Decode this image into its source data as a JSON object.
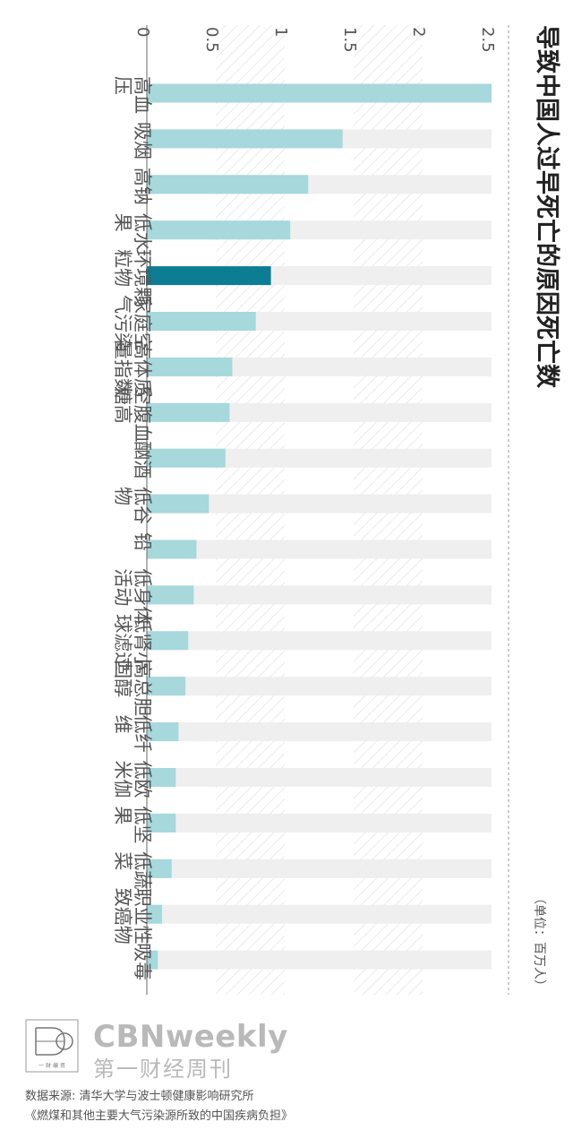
{
  "chart_data": {
    "type": "bar",
    "title": "导致中国人过早死亡的原因死亡数",
    "unit_label": "（单位：百万人）",
    "categories": [
      "高血压",
      "吸烟",
      "高钠",
      "低水果",
      "环境颗粒物",
      "家庭空气污染",
      "高体质量指数",
      "空腹血糖高",
      "酗酒",
      "低谷物",
      "铅",
      "低身体活动",
      "低肾小球滤过",
      "高总胆固醇",
      "低纤维",
      "低欧米伽",
      "低坚果",
      "低蔬菜",
      "职业性致癌物",
      "吸毒"
    ],
    "values": [
      2.5,
      1.42,
      1.17,
      1.04,
      0.9,
      0.79,
      0.62,
      0.6,
      0.57,
      0.45,
      0.36,
      0.34,
      0.3,
      0.28,
      0.23,
      0.21,
      0.21,
      0.18,
      0.11,
      0.08
    ],
    "highlight_category": "环境颗粒物",
    "ticks": [
      "0",
      "0.5",
      "1",
      "1.5",
      "2",
      "2.5"
    ],
    "xlim": [
      0,
      2.5
    ],
    "colors": {
      "bar": "#a6d8dc",
      "highlight": "#0d7d94",
      "track": "#ededed",
      "grid_hatch": "#dcdcdc"
    }
  },
  "footer": {
    "brand": "CBNweekly",
    "brand_sub": "第一财经周刊",
    "logo_text": "一 财 编 资",
    "source_line1": "数据来源: 清华大学与波士顿健康影响研究所",
    "source_line2": "《燃煤和其他主要大气污染源所致的中国疾病负担》"
  }
}
